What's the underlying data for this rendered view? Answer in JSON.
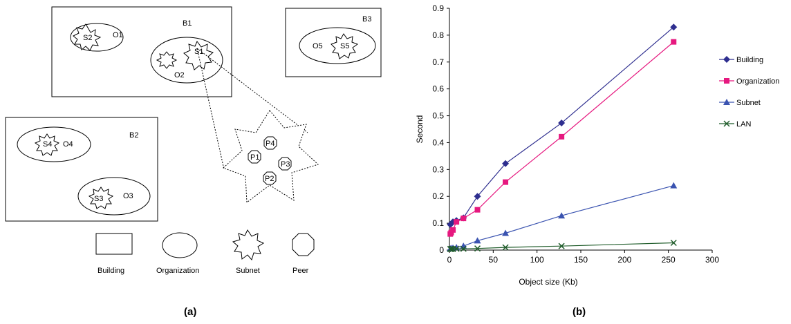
{
  "diagram": {
    "buildings": [
      "B1",
      "B2",
      "B3"
    ],
    "organizations": [
      "O1",
      "O2",
      "O3",
      "O4",
      "O5"
    ],
    "subnets": [
      "S1",
      "S2",
      "S3",
      "S4",
      "S5"
    ],
    "peers": [
      "P1",
      "P2",
      "P3",
      "P4"
    ],
    "legend": [
      "Building",
      "Organization",
      "Subnet",
      "Peer"
    ],
    "caption": "(a)"
  },
  "chart_data": {
    "type": "line",
    "caption": "(b)",
    "xlabel": "Object size (Kb)",
    "ylabel": "Second",
    "xlim": [
      0,
      300
    ],
    "ylim": [
      0,
      0.9
    ],
    "xticks": [
      0,
      50,
      100,
      150,
      200,
      250,
      300
    ],
    "yticks": [
      0,
      0.1,
      0.2,
      0.3,
      0.4,
      0.5,
      0.6,
      0.7,
      0.8,
      0.9
    ],
    "legend_position": "right",
    "x": [
      1,
      2,
      4,
      8,
      16,
      32,
      64,
      128,
      256
    ],
    "series": [
      {
        "name": "Building",
        "color": "#2e2e8f",
        "marker": "diamond",
        "values": [
          0.095,
          0.098,
          0.105,
          0.11,
          0.12,
          0.2,
          0.322,
          0.473,
          0.83
        ]
      },
      {
        "name": "Organization",
        "color": "#e6187f",
        "marker": "square",
        "values": [
          0.06,
          0.065,
          0.075,
          0.105,
          0.118,
          0.15,
          0.253,
          0.422,
          0.775
        ]
      },
      {
        "name": "Subnet",
        "color": "#3a53b0",
        "marker": "triangle",
        "values": [
          0.005,
          0.007,
          0.008,
          0.01,
          0.015,
          0.035,
          0.063,
          0.128,
          0.24
        ]
      },
      {
        "name": "LAN",
        "color": "#1f5c2a",
        "marker": "x",
        "values": [
          0.004,
          0.004,
          0.004,
          0.005,
          0.005,
          0.006,
          0.01,
          0.015,
          0.027
        ]
      }
    ]
  }
}
